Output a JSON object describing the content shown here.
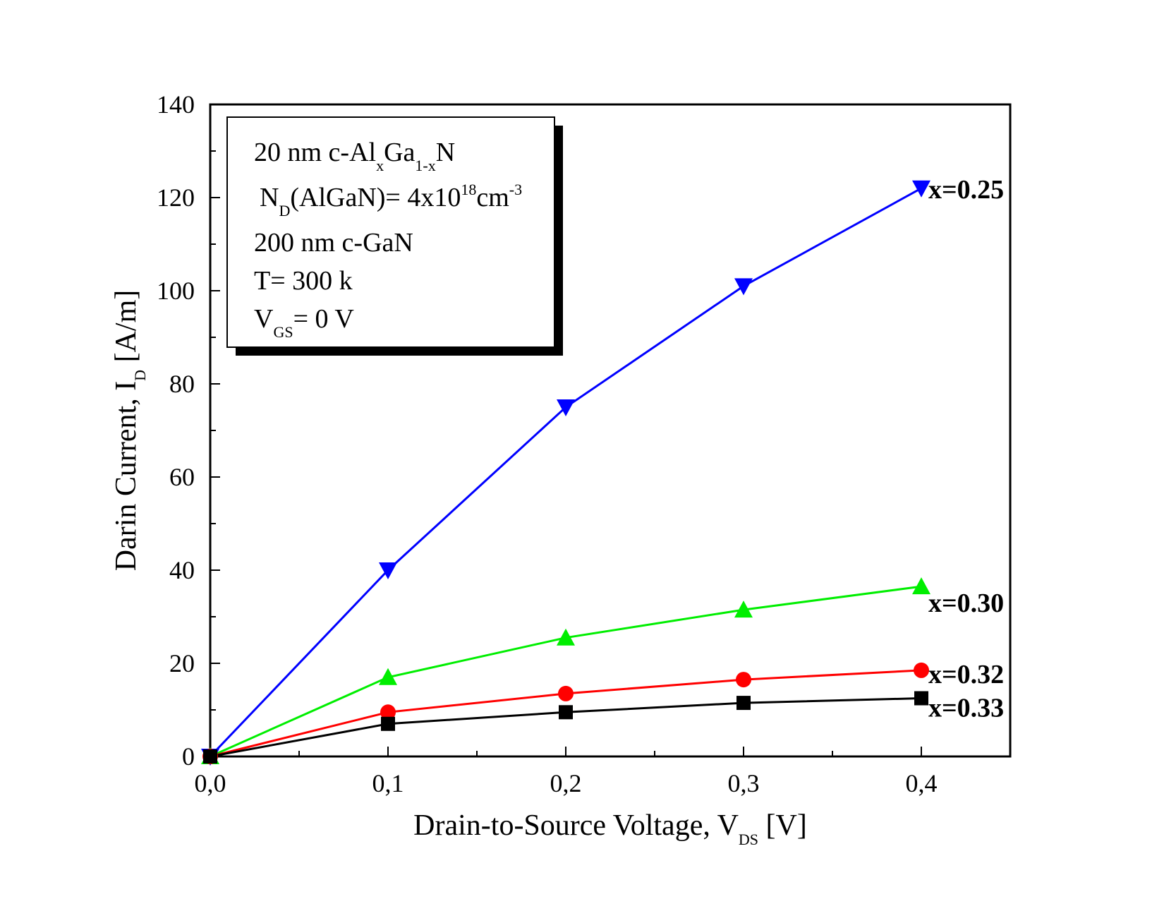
{
  "chart_data": {
    "type": "line",
    "title": "",
    "xlabel": "Drain-to-Source Voltage, V",
    "xlabel_sub": "DS",
    "xlabel_unit": " [V]",
    "ylabel": "Darin Current, I",
    "ylabel_sub": "D",
    "ylabel_unit": " [A/m]",
    "xlim": [
      0.0,
      0.45
    ],
    "ylim": [
      0,
      140
    ],
    "x_ticks": [
      0.0,
      0.1,
      0.2,
      0.3,
      0.4
    ],
    "x_tick_labels": [
      "0,0",
      "0,1",
      "0,2",
      "0,3",
      "0,4"
    ],
    "y_ticks": [
      0,
      20,
      40,
      60,
      80,
      100,
      120,
      140
    ],
    "y_tick_labels": [
      "0",
      "20",
      "40",
      "60",
      "80",
      "100",
      "120",
      "140"
    ],
    "grid": false,
    "x": [
      0.0,
      0.1,
      0.2,
      0.3,
      0.4
    ],
    "series": [
      {
        "name": "x=0.25",
        "marker": "triangle-down",
        "color": "#0000ff",
        "values": [
          0,
          40,
          75,
          101,
          122
        ]
      },
      {
        "name": "x=0.30",
        "marker": "triangle-up",
        "color": "#00ee00",
        "values": [
          0,
          17,
          25.5,
          31.5,
          36.5
        ]
      },
      {
        "name": "x=0.32",
        "marker": "circle",
        "color": "#ff0000",
        "values": [
          0,
          9.5,
          13.5,
          16.5,
          18.5
        ]
      },
      {
        "name": "x=0.33",
        "marker": "square",
        "color": "#000000",
        "values": [
          0,
          7,
          9.5,
          11.5,
          12.5
        ]
      }
    ],
    "info_box": {
      "line1": {
        "a": "20 nm c-Al",
        "s1": "x",
        "b": "Ga",
        "s2": "1-x",
        "c": "N"
      },
      "line2": {
        "a": "N",
        "s1": "D",
        "b": "(AlGaN)= 4x10",
        "s2": "18",
        "c": "cm",
        "s3": "-3"
      },
      "line3": "200 nm c-GaN",
      "line4": "T= 300 k",
      "line5": {
        "a": "V",
        "s1": "GS",
        "b": "= 0 V"
      }
    }
  }
}
